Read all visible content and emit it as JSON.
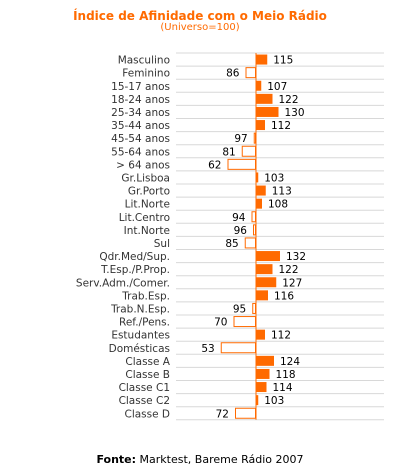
{
  "chart_data": {
    "type": "bar",
    "orientation": "horizontal-diverging",
    "title": "Índice de Afinidade com o Meio Rádio",
    "subtitle": "(Universo=100)",
    "baseline": 100,
    "categories": [
      "Masculino",
      "Feminino",
      "15-17 anos",
      "18-24 anos",
      "25-34 anos",
      "35-44 anos",
      "45-54 anos",
      "55-64 anos",
      "> 64 anos",
      "Gr.Lisboa",
      "Gr.Porto",
      "Lit.Norte",
      "Lit.Centro",
      "Int.Norte",
      "Sul",
      "Qdr.Med/Sup.",
      "T.Esp./P.Prop.",
      "Serv.Adm./Comer.",
      "Trab.Esp.",
      "Trab.N.Esp.",
      "Ref./Pens.",
      "Estudantes",
      "Domésticas",
      "Classe A",
      "Classe B",
      "Classe C1",
      "Classe C2",
      "Classe D"
    ],
    "values": [
      115,
      86,
      107,
      122,
      130,
      112,
      97,
      81,
      62,
      103,
      113,
      108,
      94,
      96,
      85,
      132,
      122,
      127,
      116,
      95,
      70,
      112,
      53,
      124,
      118,
      114,
      103,
      72
    ],
    "colors": {
      "above": "#ff6a00",
      "below_fill": "#ffffff",
      "below_stroke": "#ff6a00",
      "grid": "#d8d8d8"
    }
  },
  "footer": {
    "label": "Fonte:",
    "text": " Marktest, Bareme Rádio 2007"
  }
}
